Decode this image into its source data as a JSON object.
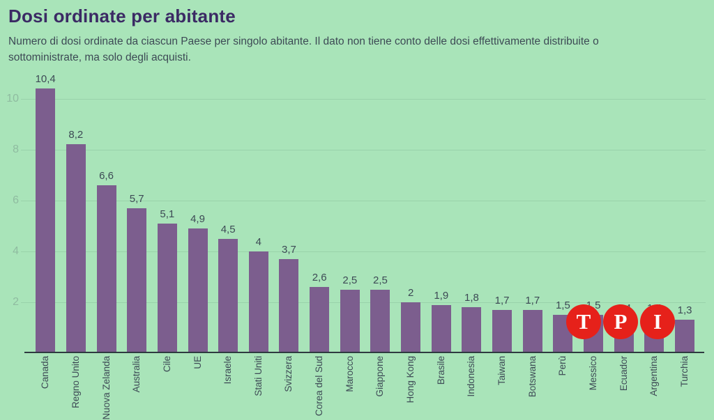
{
  "header": {
    "title": "Dosi ordinate per abitante",
    "subtitle": "Numero di dosi ordinate da ciascun Paese per singolo abitante. Il dato non tiene conto delle dosi effettivamente distribuite o sottoministrate, ma solo degli acquisti."
  },
  "chart_data": {
    "type": "bar",
    "title": "Dosi ordinate per abitante",
    "categories": [
      "Canada",
      "Regno Unito",
      "Nuova Zelanda",
      "Australia",
      "Cile",
      "UE",
      "Israele",
      "Stati Uniti",
      "Svizzera",
      "Corea del Sud",
      "Marocco",
      "Giappone",
      "Hong Kong",
      "Brasile",
      "Indonesia",
      "Taiwan",
      "Botswana",
      "Perù",
      "Messico",
      "Ecuador",
      "Argentina",
      "Turchia"
    ],
    "values": [
      10.4,
      8.2,
      6.6,
      5.7,
      5.1,
      4.9,
      4.5,
      4,
      3.7,
      2.6,
      2.5,
      2.5,
      2,
      1.9,
      1.8,
      1.7,
      1.7,
      1.5,
      1.5,
      1.4,
      1.4,
      1.3
    ],
    "value_labels": [
      "10,4",
      "8,2",
      "6,6",
      "5,7",
      "5,1",
      "4,9",
      "4,5",
      "4",
      "3,7",
      "2,6",
      "2,5",
      "2,5",
      "2",
      "1,9",
      "1,8",
      "1,7",
      "1,7",
      "1,5",
      "1,5",
      "1,4",
      "1,4",
      "1,3"
    ],
    "values_hidden_by_logo": [
      19,
      20
    ],
    "xlabel": "",
    "ylabel": "",
    "y_ticks": [
      2,
      4,
      6,
      8,
      10
    ],
    "ylim": [
      0,
      11
    ],
    "grid": true,
    "legend": "none",
    "x_tick_rotation": 90,
    "x_ticks_clipped_at_bottom": true
  },
  "watermark": {
    "letters": [
      "T",
      "P",
      "I"
    ]
  },
  "colors": {
    "background": "#a9e4b9",
    "bar": "#7c5e8e",
    "title": "#3b2a64",
    "text": "#3d4a55",
    "axis": "#2e3a40",
    "ytick": "#8fbba0",
    "grid": "rgba(20,60,40,0.10)",
    "logo_red": "#e6211a",
    "logo_letter": "#ffffff"
  }
}
